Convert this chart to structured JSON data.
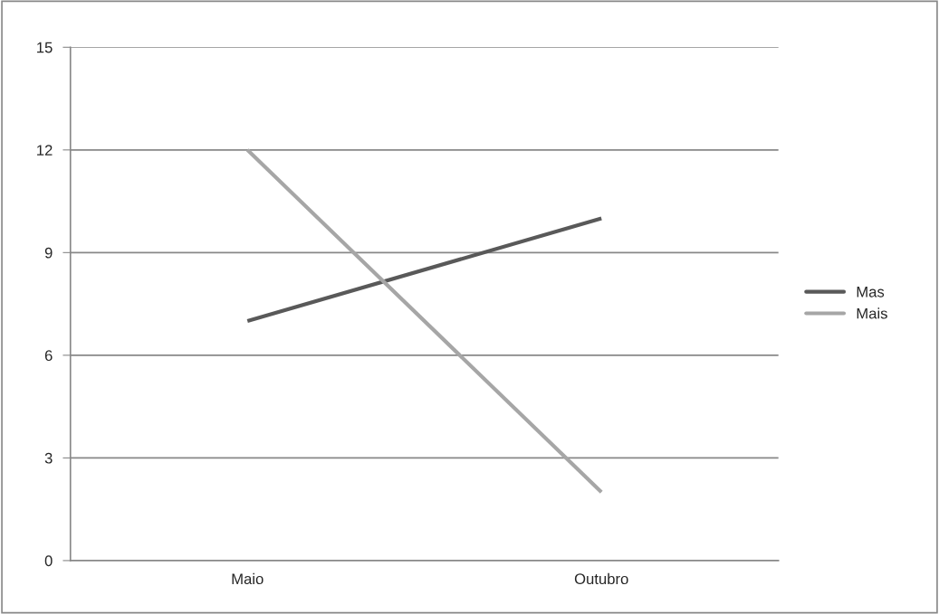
{
  "chart_data": {
    "type": "line",
    "categories": [
      "Maio",
      "Outubro"
    ],
    "series": [
      {
        "name": "Mas",
        "color": "#595959",
        "values": [
          7,
          10
        ]
      },
      {
        "name": "Mais",
        "color": "#a6a6a6",
        "values": [
          12,
          2
        ]
      }
    ],
    "ylim": [
      0,
      15
    ],
    "yticks": [
      0,
      3,
      6,
      9,
      12,
      15
    ],
    "grid": "y",
    "legend": "right",
    "marker": "none",
    "line_style": "solid"
  }
}
